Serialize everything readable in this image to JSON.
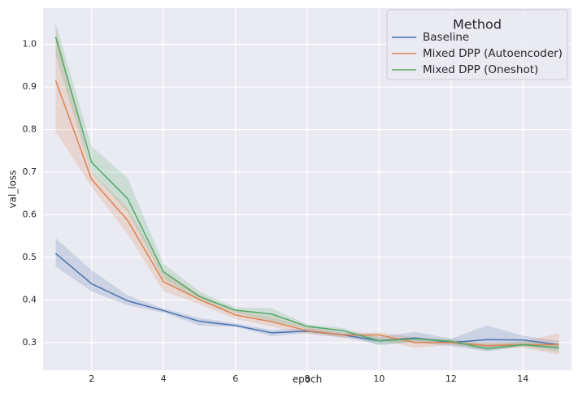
{
  "chart_data": {
    "type": "line",
    "title": "",
    "xlabel": "epoch",
    "ylabel": "val_loss",
    "xlim": [
      0.65,
      15.35
    ],
    "ylim": [
      0.235,
      1.085
    ],
    "xticks": [
      2,
      4,
      6,
      8,
      10,
      12,
      14
    ],
    "yticks": [
      0.3,
      0.4,
      0.5,
      0.6,
      0.7,
      0.8,
      0.9,
      1.0
    ],
    "ytick_labels": [
      "0.3",
      "0.4",
      "0.5",
      "0.6",
      "0.7",
      "0.8",
      "0.9",
      "1.0"
    ],
    "grid": true,
    "legend": {
      "title": "Method",
      "location": "top-right"
    },
    "x": [
      1,
      2,
      3,
      4,
      5,
      6,
      7,
      8,
      9,
      10,
      11,
      12,
      13,
      14,
      15
    ],
    "series": [
      {
        "name": "Baseline",
        "color": "#4C72B0",
        "values": [
          0.509,
          0.438,
          0.398,
          0.375,
          0.35,
          0.34,
          0.323,
          0.327,
          0.318,
          0.304,
          0.311,
          0.3,
          0.307,
          0.306,
          0.295
        ],
        "lower": [
          0.478,
          0.42,
          0.388,
          0.37,
          0.34,
          0.337,
          0.315,
          0.322,
          0.312,
          0.296,
          0.3,
          0.292,
          0.28,
          0.292,
          0.285
        ],
        "upper": [
          0.545,
          0.47,
          0.411,
          0.38,
          0.358,
          0.345,
          0.33,
          0.333,
          0.323,
          0.314,
          0.325,
          0.309,
          0.34,
          0.316,
          0.304
        ]
      },
      {
        "name": "Mixed DPP (Autoencoder)",
        "color": "#DD8452",
        "values": [
          0.915,
          0.683,
          0.587,
          0.443,
          0.401,
          0.365,
          0.349,
          0.328,
          0.318,
          0.318,
          0.3,
          0.3,
          0.293,
          0.295,
          0.295
        ],
        "lower": [
          0.795,
          0.665,
          0.555,
          0.42,
          0.39,
          0.355,
          0.338,
          0.32,
          0.312,
          0.306,
          0.288,
          0.294,
          0.285,
          0.288,
          0.272
        ],
        "upper": [
          1.04,
          0.7,
          0.617,
          0.468,
          0.413,
          0.375,
          0.36,
          0.338,
          0.323,
          0.324,
          0.312,
          0.306,
          0.3,
          0.303,
          0.322
        ]
      },
      {
        "name": "Mixed DPP (Oneshot)",
        "color": "#55A868",
        "values": [
          1.017,
          0.723,
          0.638,
          0.466,
          0.408,
          0.376,
          0.367,
          0.338,
          0.328,
          0.304,
          0.309,
          0.303,
          0.286,
          0.295,
          0.288
        ],
        "lower": [
          0.973,
          0.698,
          0.607,
          0.45,
          0.398,
          0.37,
          0.35,
          0.332,
          0.322,
          0.293,
          0.304,
          0.298,
          0.28,
          0.291,
          0.278
        ],
        "upper": [
          1.05,
          0.76,
          0.687,
          0.485,
          0.42,
          0.382,
          0.381,
          0.343,
          0.334,
          0.309,
          0.312,
          0.309,
          0.294,
          0.302,
          0.296
        ]
      }
    ]
  }
}
